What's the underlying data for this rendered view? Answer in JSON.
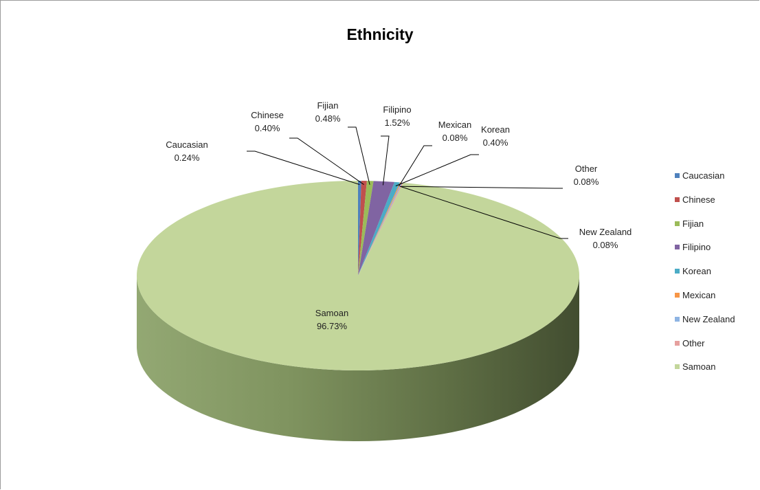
{
  "chart_data": {
    "type": "pie",
    "title": "Ethnicity",
    "categories": [
      "Caucasian",
      "Chinese",
      "Fijian",
      "Filipino",
      "Korean",
      "Mexican",
      "New Zealand",
      "Other",
      "Samoan"
    ],
    "values": [
      0.24,
      0.4,
      0.48,
      1.52,
      0.4,
      0.08,
      0.08,
      0.08,
      96.73
    ],
    "data_labels": [
      "0.24%",
      "0.40%",
      "0.48%",
      "1.52%",
      "0.40%",
      "0.08%",
      "0.08%",
      "0.08%",
      "96.73%"
    ],
    "colors": [
      "#4f81bd",
      "#c0504d",
      "#9bbb59",
      "#8064a2",
      "#4bacc6",
      "#f79646",
      "#8eb4e3",
      "#e6a09e",
      "#c3d69b"
    ],
    "legend_position": "right",
    "style": "3d-pie"
  }
}
